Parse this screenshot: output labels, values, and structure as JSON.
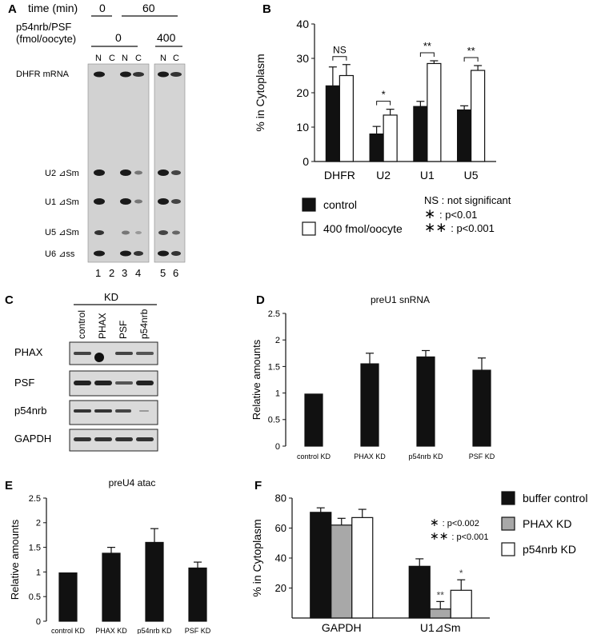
{
  "panels": {
    "A": {
      "letter": "A",
      "time_label": "time (min)",
      "time_values": [
        "0",
        "60"
      ],
      "conc_label_1": "p54nrb/PSF",
      "conc_label_2": "(fmol/oocyte)",
      "conc_values": [
        "0",
        "400"
      ],
      "fraction_labels": [
        "N",
        "C",
        "N",
        "C",
        "N",
        "C"
      ],
      "band_labels": [
        "DHFR mRNA",
        "U2 ⊿Sm",
        "U1 ⊿Sm",
        "U5 ⊿Sm",
        "U6 ⊿ss"
      ],
      "lane_numbers": [
        "1",
        "2",
        "3",
        "4",
        "5",
        "6"
      ]
    },
    "C": {
      "letter": "C",
      "kd_label": "KD",
      "lanes": [
        "control",
        "PHAX",
        "PSF",
        "p54nrb"
      ],
      "blots": [
        "PHAX",
        "PSF",
        "p54nrb",
        "GAPDH"
      ]
    }
  },
  "chart_data": [
    {
      "panel": "B",
      "type": "bar",
      "ylabel": "% in Cytoplasm",
      "ylim": [
        0,
        40
      ],
      "yticks": [
        "0",
        "10",
        "20",
        "30",
        "40"
      ],
      "categories": [
        "DHFR",
        "U2",
        "U1",
        "U5"
      ],
      "series": [
        {
          "name": "control",
          "color": "#111111",
          "values": [
            22,
            8,
            16,
            15
          ],
          "errors": [
            5.5,
            2.2,
            1.5,
            1.2
          ]
        },
        {
          "name": "400 fmol/oocyte",
          "color": "#ffffff",
          "values": [
            25,
            13.5,
            28.5,
            26.5
          ],
          "errors": [
            3.2,
            1.7,
            0.8,
            1.4
          ]
        }
      ],
      "significance": [
        "NS",
        "*",
        "**",
        "**"
      ],
      "notes": [
        "NS : not significant",
        "∗ : p<0.01",
        "∗∗ : p<0.001"
      ]
    },
    {
      "panel": "D",
      "type": "bar",
      "title": "preU1 snRNA",
      "ylabel": "Relative amounts",
      "ylim": [
        0,
        2.5
      ],
      "yticks": [
        "0",
        "0.5",
        "1",
        "1.5",
        "2",
        "2.5"
      ],
      "categories": [
        "control KD",
        "PHAX KD",
        "p54nrb KD",
        "PSF KD"
      ],
      "values": [
        0.98,
        1.55,
        1.68,
        1.43
      ],
      "errors": [
        0,
        0.2,
        0.12,
        0.23
      ],
      "color": "#111111"
    },
    {
      "panel": "E",
      "type": "bar",
      "title": "preU4 atac",
      "ylabel": "Relative amounts",
      "ylim": [
        0,
        2.5
      ],
      "yticks": [
        "0",
        "0.5",
        "1",
        "1.5",
        "2",
        "2.5"
      ],
      "categories": [
        "control KD",
        "PHAX KD",
        "p54nrb KD",
        "PSF KD"
      ],
      "values": [
        0.98,
        1.38,
        1.6,
        1.08
      ],
      "errors": [
        0,
        0.12,
        0.28,
        0.12
      ],
      "color": "#111111"
    },
    {
      "panel": "F",
      "type": "bar",
      "ylabel": "% in Cytoplasm",
      "ylim": [
        0,
        80
      ],
      "yticks": [
        "20",
        "40",
        "60",
        "80"
      ],
      "categories": [
        "GAPDH",
        "U1⊿Sm"
      ],
      "series": [
        {
          "name": "buffer control",
          "color": "#111111",
          "values": [
            70.5,
            34.5
          ],
          "errors": [
            3,
            5
          ]
        },
        {
          "name": "PHAX KD",
          "color": "#a8a8a8",
          "values": [
            62,
            6
          ],
          "errors": [
            4.5,
            5
          ]
        },
        {
          "name": "p54nrb KD",
          "color": "#ffffff",
          "values": [
            67,
            18.5
          ],
          "errors": [
            5.5,
            7
          ]
        }
      ],
      "significance_marks": [
        "",
        "",
        "",
        "",
        "**",
        "*"
      ],
      "notes": [
        "∗ : p<0.002",
        "∗∗ : p<0.001"
      ]
    }
  ]
}
